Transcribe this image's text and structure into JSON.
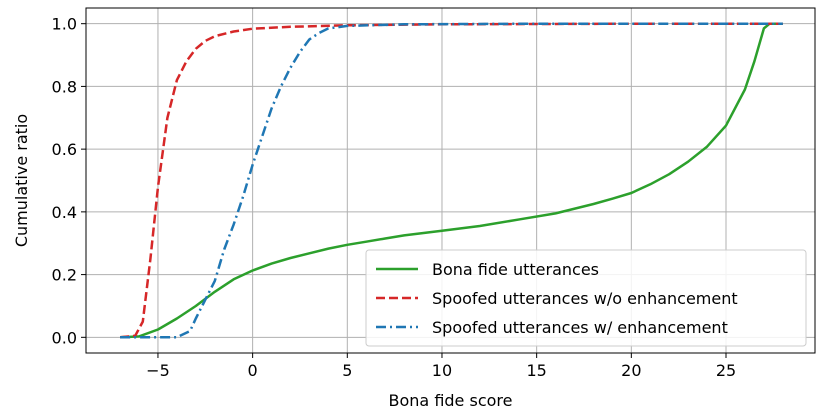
{
  "chart_data": {
    "type": "line",
    "xlabel": "Bona fide score",
    "ylabel": "Cumulative ratio",
    "xlim": [
      -8.8,
      29.7
    ],
    "ylim": [
      -0.05,
      1.05
    ],
    "grid": true,
    "legend_position": "lower-right",
    "x_ticks": [
      -5,
      0,
      5,
      10,
      15,
      20,
      25
    ],
    "x_tick_labels": [
      "−5",
      "0",
      "5",
      "10",
      "15",
      "20",
      "25"
    ],
    "y_ticks": [
      0.0,
      0.2,
      0.4,
      0.6,
      0.8,
      1.0
    ],
    "y_tick_labels": [
      "0.0",
      "0.2",
      "0.4",
      "0.6",
      "0.8",
      "1.0"
    ],
    "series": [
      {
        "name": "Bona fide utterances",
        "color": "#2ca02c",
        "style": "solid",
        "points": [
          [
            -7,
            0.0
          ],
          [
            -6,
            0.003
          ],
          [
            -5,
            0.025
          ],
          [
            -4,
            0.06
          ],
          [
            -3,
            0.1
          ],
          [
            -2,
            0.145
          ],
          [
            -1,
            0.185
          ],
          [
            0,
            0.213
          ],
          [
            1,
            0.235
          ],
          [
            2,
            0.253
          ],
          [
            3,
            0.268
          ],
          [
            4,
            0.283
          ],
          [
            5,
            0.295
          ],
          [
            6,
            0.305
          ],
          [
            7,
            0.315
          ],
          [
            8,
            0.325
          ],
          [
            10,
            0.34
          ],
          [
            12,
            0.355
          ],
          [
            14,
            0.375
          ],
          [
            16,
            0.395
          ],
          [
            18,
            0.425
          ],
          [
            19,
            0.442
          ],
          [
            20,
            0.46
          ],
          [
            21,
            0.488
          ],
          [
            22,
            0.52
          ],
          [
            23,
            0.56
          ],
          [
            24,
            0.608
          ],
          [
            25,
            0.675
          ],
          [
            26,
            0.79
          ],
          [
            26.5,
            0.88
          ],
          [
            27,
            0.985
          ],
          [
            27.3,
            1.0
          ],
          [
            28,
            1.0
          ]
        ]
      },
      {
        "name": "Spoofed utterances w/o enhancement",
        "color": "#d62728",
        "style": "dashed",
        "points": [
          [
            -7,
            0.0
          ],
          [
            -6.2,
            0.005
          ],
          [
            -5.8,
            0.05
          ],
          [
            -5.4,
            0.25
          ],
          [
            -5.0,
            0.48
          ],
          [
            -4.5,
            0.7
          ],
          [
            -4.0,
            0.82
          ],
          [
            -3.5,
            0.88
          ],
          [
            -3,
            0.92
          ],
          [
            -2.5,
            0.945
          ],
          [
            -2,
            0.96
          ],
          [
            -1,
            0.975
          ],
          [
            0,
            0.984
          ],
          [
            2,
            0.99
          ],
          [
            5,
            0.995
          ],
          [
            10,
            0.998
          ],
          [
            20,
            1.0
          ],
          [
            28,
            1.0
          ]
        ]
      },
      {
        "name": "Spoofed utterances w/ enhancement",
        "color": "#1f77b4",
        "style": "dashdot",
        "points": [
          [
            -7,
            0.0
          ],
          [
            -4,
            0.0
          ],
          [
            -3.3,
            0.02
          ],
          [
            -3,
            0.06
          ],
          [
            -2.5,
            0.12
          ],
          [
            -2,
            0.18
          ],
          [
            -1.5,
            0.28
          ],
          [
            -1,
            0.36
          ],
          [
            -0.5,
            0.45
          ],
          [
            0,
            0.55
          ],
          [
            0.5,
            0.64
          ],
          [
            1,
            0.73
          ],
          [
            1.5,
            0.8
          ],
          [
            2,
            0.86
          ],
          [
            2.5,
            0.91
          ],
          [
            3,
            0.95
          ],
          [
            3.5,
            0.97
          ],
          [
            4,
            0.985
          ],
          [
            5,
            0.993
          ],
          [
            8,
            0.998
          ],
          [
            15,
            1.0
          ],
          [
            28,
            1.0
          ]
        ]
      }
    ]
  }
}
